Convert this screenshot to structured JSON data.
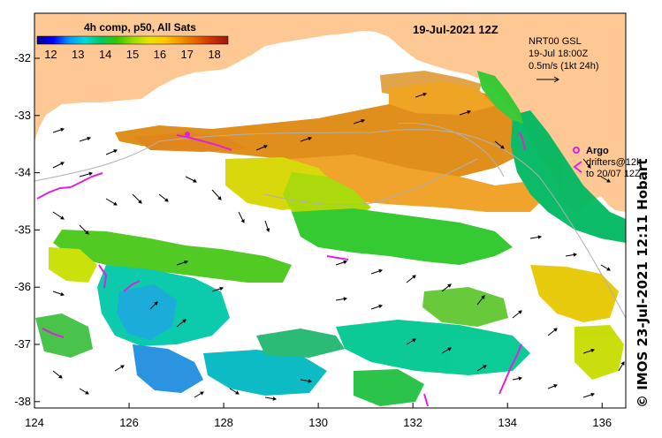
{
  "title": {
    "product": "4h comp, p50, All Sats",
    "date": "19-Jul-2021 12Z"
  },
  "colorbar": {
    "ticks": [
      "12",
      "13",
      "14",
      "15",
      "16",
      "17",
      "18"
    ],
    "vmin": 11.5,
    "vmax": 18.5,
    "colors": [
      "#00008b",
      "#0000ff",
      "#0096ff",
      "#00dcdc",
      "#00c864",
      "#32c800",
      "#96dc00",
      "#e6e600",
      "#ffc800",
      "#f09600",
      "#e66400",
      "#c83200",
      "#a01414"
    ]
  },
  "current_legend": {
    "line1": "NRT00 GSL",
    "line2": "19-Jul 18:00Z",
    "line3": "0.5m/s (1kt 24h)"
  },
  "drifter_legend": {
    "argo_label": "Argo",
    "drifters_line1": "drifters@12h",
    "drifters_line2": "to 20/07 12Z"
  },
  "axes": {
    "x_ticks": [
      "124",
      "126",
      "128",
      "130",
      "132",
      "134",
      "136"
    ],
    "y_ticks": [
      "-32",
      "-33",
      "-34",
      "-35",
      "-36",
      "-37",
      "-38"
    ]
  },
  "credit": "© IMOS 23-Jul-2021 12:11 Hobart",
  "colors": {
    "land": "#fec895",
    "drifter": "#e020e0",
    "frame": "#000000"
  }
}
